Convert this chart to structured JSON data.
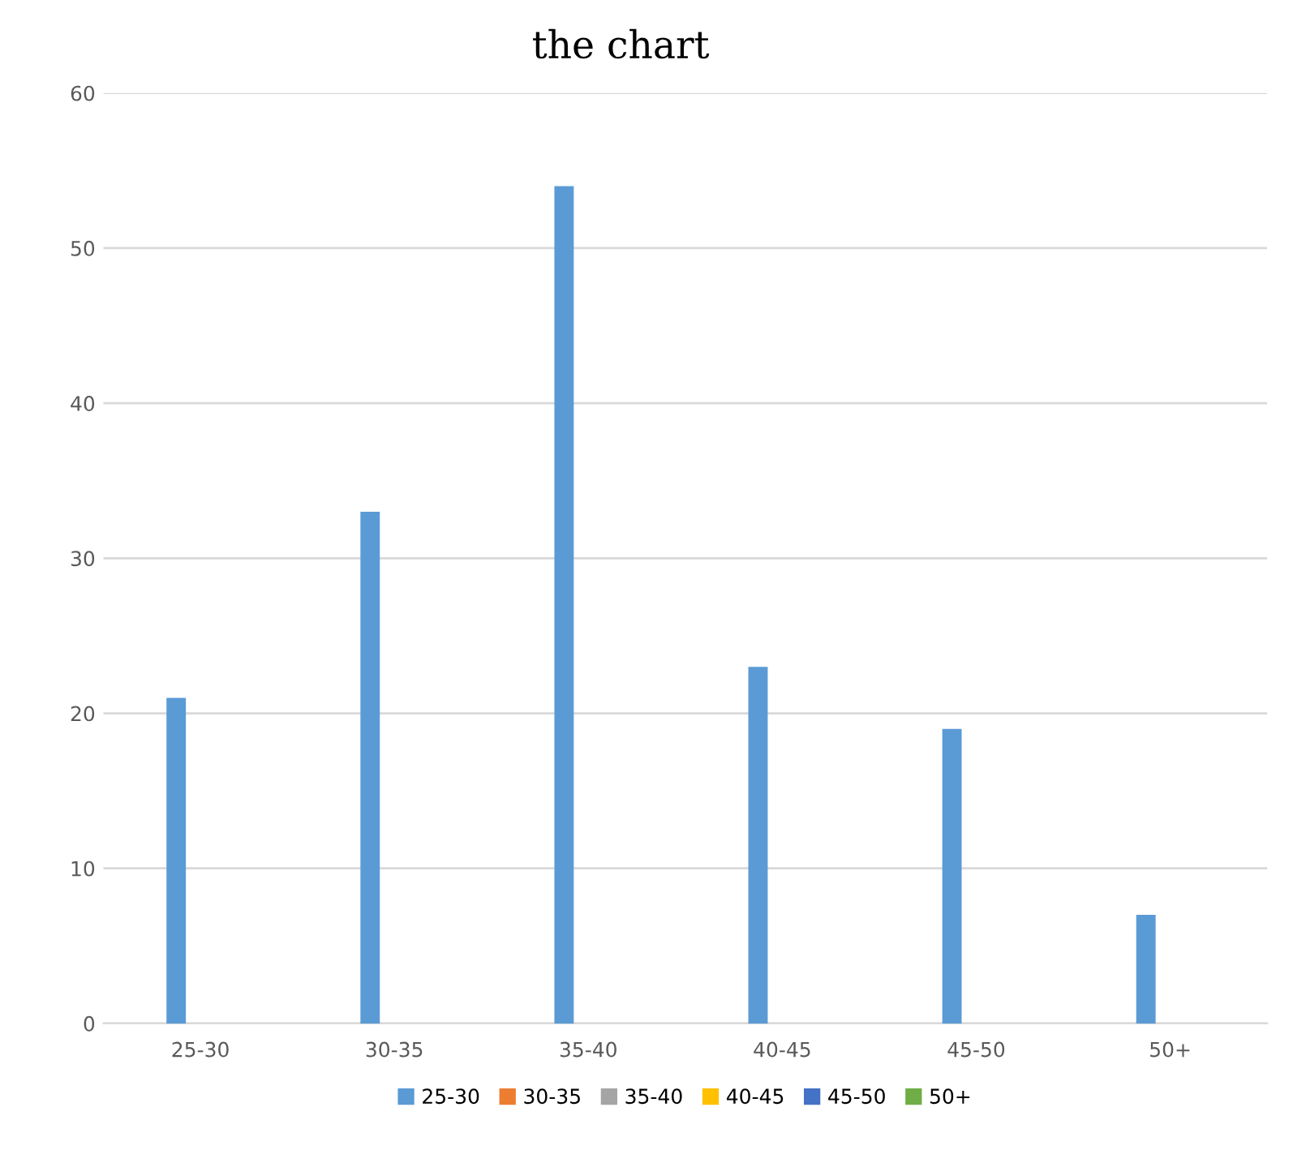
{
  "chart_data": {
    "type": "bar",
    "title": "the chart",
    "categories": [
      "25-30",
      "30-35",
      "35-40",
      "40-45",
      "45-50",
      "50+"
    ],
    "series": [
      {
        "name": "25-30",
        "color": "#5b9bd5",
        "values": [
          21,
          33,
          54,
          23,
          19,
          7
        ]
      },
      {
        "name": "30-35",
        "color": "#ed7d31",
        "values": [
          null,
          null,
          null,
          null,
          null,
          null
        ]
      },
      {
        "name": "35-40",
        "color": "#a5a5a5",
        "values": [
          null,
          null,
          null,
          null,
          null,
          null
        ]
      },
      {
        "name": "40-45",
        "color": "#ffc000",
        "values": [
          null,
          null,
          null,
          null,
          null,
          null
        ]
      },
      {
        "name": "45-50",
        "color": "#4472c4",
        "values": [
          null,
          null,
          null,
          null,
          null,
          null
        ]
      },
      {
        "name": "50+",
        "color": "#70ad47",
        "values": [
          null,
          null,
          null,
          null,
          null,
          null
        ]
      }
    ],
    "ylim": [
      0,
      60
    ],
    "yticks": [
      0,
      10,
      20,
      30,
      40,
      50,
      60
    ],
    "grid": "y",
    "legend": "bottom"
  }
}
